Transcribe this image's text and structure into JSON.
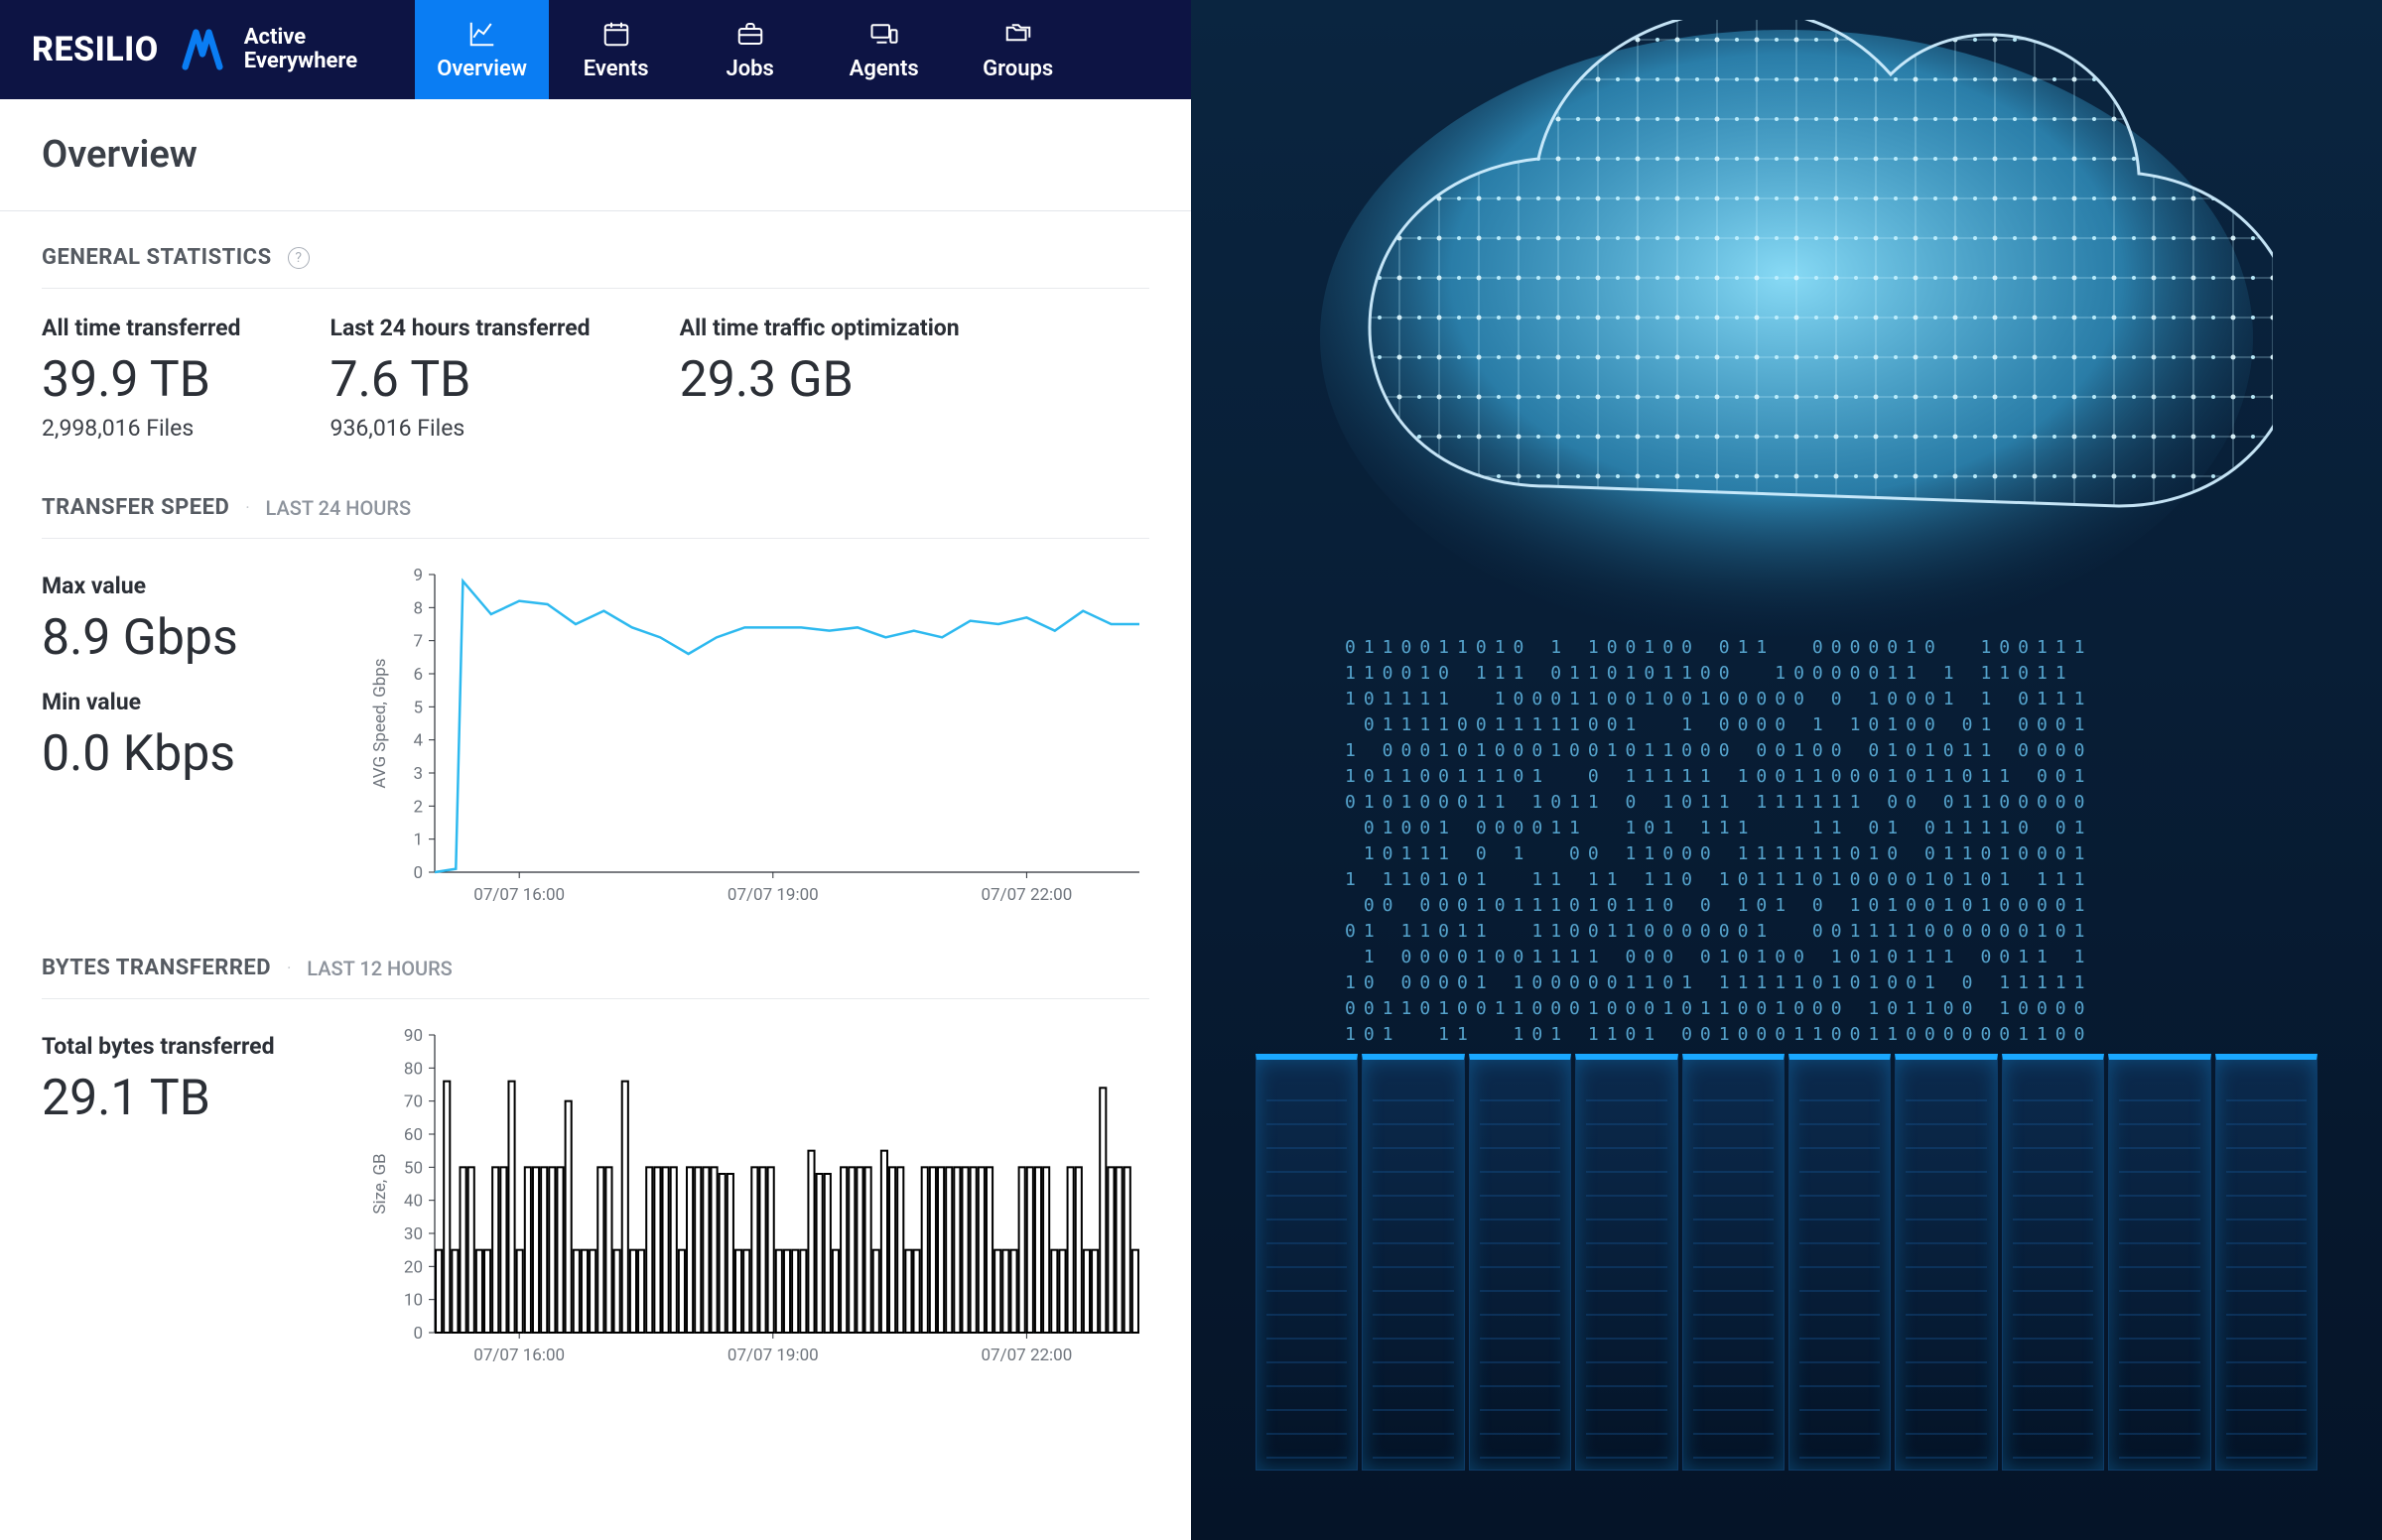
{
  "brand": {
    "name": "RESILIO",
    "tagline_top": "Active",
    "tagline_bottom": "Everywhere"
  },
  "nav": {
    "items": [
      {
        "label": "Overview",
        "active": true
      },
      {
        "label": "Events",
        "active": false
      },
      {
        "label": "Jobs",
        "active": false
      },
      {
        "label": "Agents",
        "active": false
      },
      {
        "label": "Groups",
        "active": false
      }
    ]
  },
  "page": {
    "title": "Overview"
  },
  "general_stats": {
    "title": "GENERAL STATISTICS",
    "items": [
      {
        "label": "All time transferred",
        "value": "39.9 TB",
        "sub": "2,998,016 Files"
      },
      {
        "label": "Last 24 hours transferred",
        "value": "7.6 TB",
        "sub": "936,016 Files"
      },
      {
        "label": "All time traffic optimization",
        "value": "29.3 GB",
        "sub": ""
      }
    ]
  },
  "transfer_speed": {
    "title": "TRANSFER SPEED",
    "meta": "LAST 24 HOURS",
    "max_label": "Max value",
    "max_value": "8.9 Gbps",
    "min_label": "Min value",
    "min_value": "0.0 Kbps",
    "chart": {
      "type": "line",
      "y_label": "AVG Speed, Gbps",
      "ylim": [
        0,
        9
      ],
      "yticks": [
        0,
        1,
        2,
        3,
        4,
        5,
        6,
        7,
        8,
        9
      ],
      "xtick_labels": [
        "07/07 16:00",
        "07/07 19:00",
        "07/07 22:00"
      ],
      "xtick_positions": [
        0.12,
        0.48,
        0.84
      ],
      "stroke_color": "#2db9ef",
      "line_width": 2.5,
      "background": "#ffffff",
      "points": [
        [
          0.0,
          0.0
        ],
        [
          0.03,
          0.1
        ],
        [
          0.04,
          8.8
        ],
        [
          0.08,
          7.8
        ],
        [
          0.12,
          8.2
        ],
        [
          0.16,
          8.1
        ],
        [
          0.2,
          7.5
        ],
        [
          0.24,
          7.9
        ],
        [
          0.28,
          7.4
        ],
        [
          0.32,
          7.1
        ],
        [
          0.36,
          6.6
        ],
        [
          0.4,
          7.1
        ],
        [
          0.44,
          7.4
        ],
        [
          0.48,
          7.4
        ],
        [
          0.52,
          7.4
        ],
        [
          0.56,
          7.3
        ],
        [
          0.6,
          7.4
        ],
        [
          0.64,
          7.1
        ],
        [
          0.68,
          7.3
        ],
        [
          0.72,
          7.1
        ],
        [
          0.76,
          7.6
        ],
        [
          0.8,
          7.5
        ],
        [
          0.84,
          7.7
        ],
        [
          0.88,
          7.3
        ],
        [
          0.92,
          7.9
        ],
        [
          0.96,
          7.5
        ],
        [
          1.0,
          7.5
        ]
      ]
    }
  },
  "bytes_transferred": {
    "title": "BYTES TRANSFERRED",
    "meta": "LAST 12 HOURS",
    "total_label": "Total bytes transferred",
    "total_value": "29.1 TB",
    "chart": {
      "type": "bar",
      "y_label": "Size, GB",
      "ylim": [
        0,
        90
      ],
      "yticks": [
        0,
        10,
        20,
        30,
        40,
        50,
        60,
        70,
        80,
        90
      ],
      "xtick_labels": [
        "07/07 16:00",
        "07/07 19:00",
        "07/07 22:00"
      ],
      "xtick_positions": [
        0.12,
        0.48,
        0.84
      ],
      "stroke_color": "#000000",
      "bar_gap_ratio": 0.25,
      "background": "#ffffff",
      "values": [
        25,
        76,
        25,
        50,
        50,
        25,
        25,
        50,
        50,
        76,
        25,
        50,
        50,
        50,
        50,
        50,
        70,
        25,
        25,
        25,
        50,
        50,
        25,
        76,
        25,
        25,
        50,
        50,
        50,
        50,
        25,
        50,
        50,
        50,
        50,
        48,
        48,
        25,
        25,
        50,
        50,
        50,
        25,
        25,
        25,
        25,
        55,
        48,
        48,
        25,
        50,
        50,
        50,
        50,
        25,
        55,
        50,
        50,
        25,
        25,
        50,
        50,
        50,
        50,
        50,
        50,
        50,
        50,
        50,
        25,
        25,
        25,
        50,
        50,
        50,
        50,
        25,
        25,
        50,
        50,
        25,
        25,
        74,
        50,
        50,
        50,
        25
      ]
    }
  },
  "colors": {
    "navbar_bg": "#0d1444",
    "tab_active_bg": "#0a7df3",
    "text_primary": "#2b2f36",
    "text_muted": "#8d939c",
    "divider": "#e8eaed",
    "right_bg_top": "#0a2540",
    "right_bg_bottom": "#051428",
    "cloud_glow": "#4fc8ff",
    "server_top": "#1aa8ff"
  }
}
